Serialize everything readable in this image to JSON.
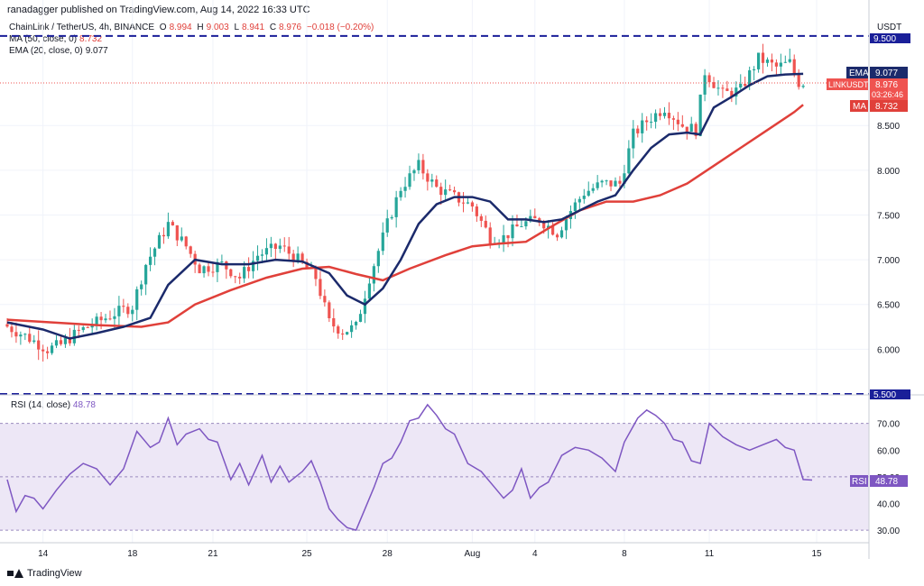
{
  "header": {
    "published": "ranadagger published on TradingView.com, Aug 14, 2022 16:33 UTC"
  },
  "legend": {
    "symbol": "ChainLink / TetherUS, 4h, BINANCE",
    "o_label": "O",
    "o": "8.994",
    "h_label": "H",
    "h": "9.003",
    "l_label": "L",
    "l": "8.941",
    "c_label": "C",
    "c": "8.976",
    "change": "−0.018 (−0.20%)",
    "ma_label": "MA (50, close, 0)",
    "ma_value": "8.732",
    "ema_label": "EMA (20, close, 0)",
    "ema_value": "9.077"
  },
  "rsi_legend": {
    "label": "RSI (14, close)",
    "value": "48.78"
  },
  "currency": "USDT",
  "badges": {
    "ema": {
      "label": "EMA",
      "value": "9.077"
    },
    "price": {
      "label": "LINKUSDT",
      "value": "8.976",
      "countdown": "03:26:46"
    },
    "ma": {
      "label": "MA",
      "value": "8.732"
    },
    "rsi": {
      "label": "RSI",
      "value": "48.78"
    }
  },
  "level_labels": {
    "upper": "9.500",
    "lower": "5.500"
  },
  "footer": {
    "brand": "TradingView"
  },
  "colors": {
    "up": "#26a69a",
    "down": "#ef5350",
    "ema": "#1b2a6b",
    "ma": "#e0403a",
    "rsi": "#7e57c2",
    "level": "#1a1f99",
    "rsi_band": "#ede7f6"
  },
  "chart_data": {
    "type": "candlestick",
    "timeframe": "4h",
    "price_axis": {
      "min": 5.5,
      "max": 9.6,
      "ticks": [
        "6.000",
        "6.500",
        "7.000",
        "7.500",
        "8.000",
        "8.500"
      ]
    },
    "rsi_axis": {
      "min": 26,
      "max": 80,
      "ticks": [
        "30.00",
        "40.00",
        "50.00",
        "60.00",
        "70.00"
      ],
      "band": [
        30,
        70
      ]
    },
    "x_tick_labels": [
      "14",
      "18",
      "21",
      "25",
      "28",
      "Aug",
      "4",
      "8",
      "11",
      "15"
    ],
    "x_tick_bars": [
      8,
      28,
      46,
      67,
      85,
      104,
      118,
      138,
      157,
      181
    ],
    "support_resistance": [
      9.5,
      5.5
    ],
    "price_path": [
      [
        0,
        6.28
      ],
      [
        5,
        6.15
      ],
      [
        10,
        6.0
      ],
      [
        13,
        6.05
      ],
      [
        17,
        6.2
      ],
      [
        21,
        6.3
      ],
      [
        25,
        6.4
      ],
      [
        29,
        6.48
      ],
      [
        32,
        6.95
      ],
      [
        37,
        7.4
      ],
      [
        41,
        7.15
      ],
      [
        44,
        6.9
      ],
      [
        49,
        6.95
      ],
      [
        53,
        6.8
      ],
      [
        57,
        7.05
      ],
      [
        62,
        7.15
      ],
      [
        66,
        7.0
      ],
      [
        70,
        6.8
      ],
      [
        73,
        6.3
      ],
      [
        76,
        6.2
      ],
      [
        79,
        6.25
      ],
      [
        82,
        6.8
      ],
      [
        86,
        7.4
      ],
      [
        89,
        7.8
      ],
      [
        93,
        8.05
      ],
      [
        97,
        7.8
      ],
      [
        101,
        7.7
      ],
      [
        105,
        7.6
      ],
      [
        109,
        7.25
      ],
      [
        112,
        7.25
      ],
      [
        116,
        7.4
      ],
      [
        120,
        7.45
      ],
      [
        124,
        7.3
      ],
      [
        127,
        7.55
      ],
      [
        130,
        7.75
      ],
      [
        134,
        7.85
      ],
      [
        138,
        7.85
      ],
      [
        141,
        8.4
      ],
      [
        144,
        8.55
      ],
      [
        148,
        8.7
      ],
      [
        152,
        8.5
      ],
      [
        155,
        8.45
      ],
      [
        157,
        9.1
      ],
      [
        161,
        8.85
      ],
      [
        165,
        8.9
      ],
      [
        169,
        9.25
      ],
      [
        173,
        9.15
      ],
      [
        176,
        9.2
      ],
      [
        178,
        8.98
      ]
    ],
    "ema20_path": [
      [
        0,
        6.3
      ],
      [
        8,
        6.22
      ],
      [
        14,
        6.12
      ],
      [
        20,
        6.18
      ],
      [
        26,
        6.25
      ],
      [
        32,
        6.35
      ],
      [
        36,
        6.72
      ],
      [
        42,
        7.0
      ],
      [
        48,
        6.95
      ],
      [
        54,
        6.95
      ],
      [
        60,
        7.0
      ],
      [
        66,
        6.98
      ],
      [
        72,
        6.85
      ],
      [
        76,
        6.6
      ],
      [
        80,
        6.5
      ],
      [
        84,
        6.68
      ],
      [
        88,
        7.0
      ],
      [
        92,
        7.4
      ],
      [
        96,
        7.62
      ],
      [
        100,
        7.7
      ],
      [
        104,
        7.7
      ],
      [
        108,
        7.65
      ],
      [
        112,
        7.45
      ],
      [
        116,
        7.45
      ],
      [
        120,
        7.42
      ],
      [
        124,
        7.45
      ],
      [
        128,
        7.55
      ],
      [
        132,
        7.65
      ],
      [
        136,
        7.72
      ],
      [
        140,
        8.0
      ],
      [
        144,
        8.25
      ],
      [
        148,
        8.4
      ],
      [
        152,
        8.42
      ],
      [
        155,
        8.4
      ],
      [
        158,
        8.7
      ],
      [
        162,
        8.82
      ],
      [
        166,
        8.95
      ],
      [
        170,
        9.05
      ],
      [
        174,
        9.07
      ],
      [
        178,
        9.077
      ]
    ],
    "ma50_path": [
      [
        0,
        6.33
      ],
      [
        10,
        6.3
      ],
      [
        20,
        6.27
      ],
      [
        30,
        6.25
      ],
      [
        36,
        6.3
      ],
      [
        42,
        6.5
      ],
      [
        50,
        6.66
      ],
      [
        58,
        6.8
      ],
      [
        66,
        6.9
      ],
      [
        72,
        6.92
      ],
      [
        78,
        6.84
      ],
      [
        84,
        6.77
      ],
      [
        90,
        6.9
      ],
      [
        98,
        7.05
      ],
      [
        104,
        7.15
      ],
      [
        110,
        7.18
      ],
      [
        116,
        7.2
      ],
      [
        122,
        7.38
      ],
      [
        128,
        7.55
      ],
      [
        134,
        7.65
      ],
      [
        140,
        7.65
      ],
      [
        146,
        7.72
      ],
      [
        152,
        7.85
      ],
      [
        158,
        8.05
      ],
      [
        164,
        8.25
      ],
      [
        170,
        8.45
      ],
      [
        176,
        8.65
      ],
      [
        178,
        8.732
      ]
    ],
    "rsi_path": [
      [
        0,
        49
      ],
      [
        2,
        37
      ],
      [
        4,
        43
      ],
      [
        6,
        42
      ],
      [
        8,
        38
      ],
      [
        11,
        45
      ],
      [
        14,
        51
      ],
      [
        17,
        55
      ],
      [
        20,
        53
      ],
      [
        23,
        47
      ],
      [
        26,
        53
      ],
      [
        29,
        67
      ],
      [
        32,
        61
      ],
      [
        34,
        63
      ],
      [
        36,
        72
      ],
      [
        38,
        62
      ],
      [
        40,
        66
      ],
      [
        43,
        68
      ],
      [
        45,
        64
      ],
      [
        47,
        63
      ],
      [
        50,
        49
      ],
      [
        52,
        55
      ],
      [
        54,
        47
      ],
      [
        57,
        58
      ],
      [
        59,
        48
      ],
      [
        61,
        54
      ],
      [
        63,
        48
      ],
      [
        66,
        52
      ],
      [
        68,
        56
      ],
      [
        70,
        48
      ],
      [
        72,
        38
      ],
      [
        74,
        34
      ],
      [
        76,
        31
      ],
      [
        78,
        30
      ],
      [
        80,
        38
      ],
      [
        82,
        46
      ],
      [
        84,
        55
      ],
      [
        86,
        57
      ],
      [
        88,
        63
      ],
      [
        90,
        71
      ],
      [
        92,
        72
      ],
      [
        94,
        77
      ],
      [
        96,
        73
      ],
      [
        98,
        68
      ],
      [
        100,
        66
      ],
      [
        103,
        55
      ],
      [
        106,
        52
      ],
      [
        109,
        46
      ],
      [
        111,
        42
      ],
      [
        113,
        45
      ],
      [
        115,
        53
      ],
      [
        117,
        42
      ],
      [
        119,
        46
      ],
      [
        121,
        48
      ],
      [
        124,
        58
      ],
      [
        127,
        61
      ],
      [
        130,
        60
      ],
      [
        133,
        57
      ],
      [
        136,
        52
      ],
      [
        138,
        63
      ],
      [
        141,
        72
      ],
      [
        143,
        75
      ],
      [
        145,
        73
      ],
      [
        147,
        70
      ],
      [
        149,
        64
      ],
      [
        151,
        63
      ],
      [
        153,
        56
      ],
      [
        155,
        55
      ],
      [
        157,
        70
      ],
      [
        160,
        65
      ],
      [
        163,
        62
      ],
      [
        166,
        60
      ],
      [
        169,
        62
      ],
      [
        172,
        64
      ],
      [
        174,
        61
      ],
      [
        176,
        60
      ],
      [
        178,
        49
      ],
      [
        180,
        48.78
      ]
    ]
  }
}
